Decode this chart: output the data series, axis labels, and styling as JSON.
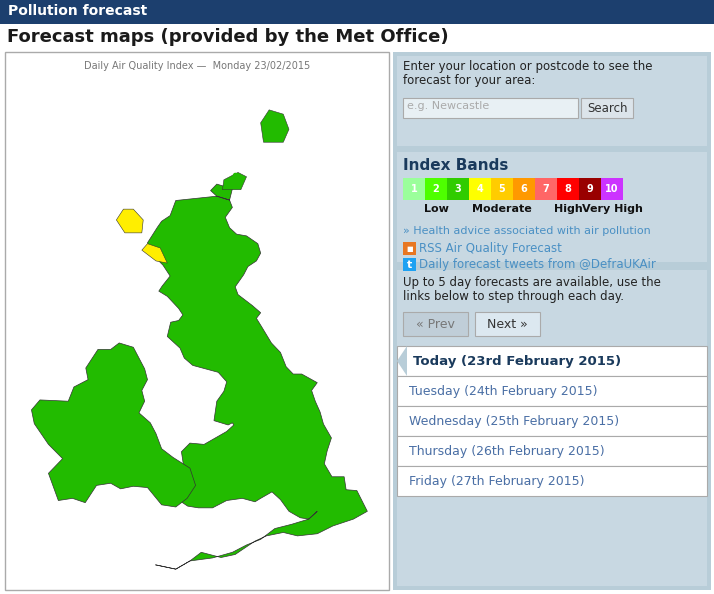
{
  "title_bar_text": "Pollution forecast",
  "title_bar_bg": "#1c3f6e",
  "title_bar_text_color": "#ffffff",
  "page_bg": "#ffffff",
  "heading_text": "Forecast maps (provided by the Met Office)",
  "heading_color": "#1a1a1a",
  "map_border_color": "#aaaaaa",
  "map_title": "Daily Air Quality Index —  Monday 23/02/2015",
  "map_title_color": "#777777",
  "right_panel_bg": "#b8cdd8",
  "search_label_line1": "Enter your location or postcode to see the",
  "search_label_line2": "forecast for your area:",
  "search_placeholder": "e.g. Newcastle",
  "search_button": "Search",
  "index_bands_title": "Index Bands",
  "index_colors": [
    "#9bff9b",
    "#4eff00",
    "#30cc00",
    "#feff00",
    "#ffcc00",
    "#ff9900",
    "#ff6666",
    "#ff0000",
    "#990000",
    "#cc33ff"
  ],
  "index_labels": [
    "1",
    "2",
    "3",
    "4",
    "5",
    "6",
    "7",
    "8",
    "9",
    "10"
  ],
  "health_link": "» Health advice associated with air pollution",
  "rss_text": "RSS Air Quality Forecast",
  "twitter_text": "Daily forecast tweets from @DefraUKAir",
  "forecast_info_line1": "Up to 5 day forecasts are available, use the",
  "forecast_info_line2": "links below to step through each day.",
  "prev_button": "« Prev",
  "next_button": "Next »",
  "today_label": "Today (23rd February 2015)",
  "day_list": [
    "Tuesday (24th February 2015)",
    "Wednesday (25th February 2015)",
    "Thursday (26th February 2015)",
    "Friday (27th February 2015)"
  ],
  "list_text_color": "#4a6fa5",
  "today_text_color": "#1a3a5c",
  "link_color": "#4a90c4",
  "health_link_color": "#4a90c4",
  "rss_color": "#e87722",
  "twitter_color": "#1da1f2",
  "uk_green": "#22bb00",
  "uk_yellow": "#ffee00",
  "uk_orange": "#ff9900",
  "uk_outline": "#333333",
  "sea_color": "#ffffff"
}
